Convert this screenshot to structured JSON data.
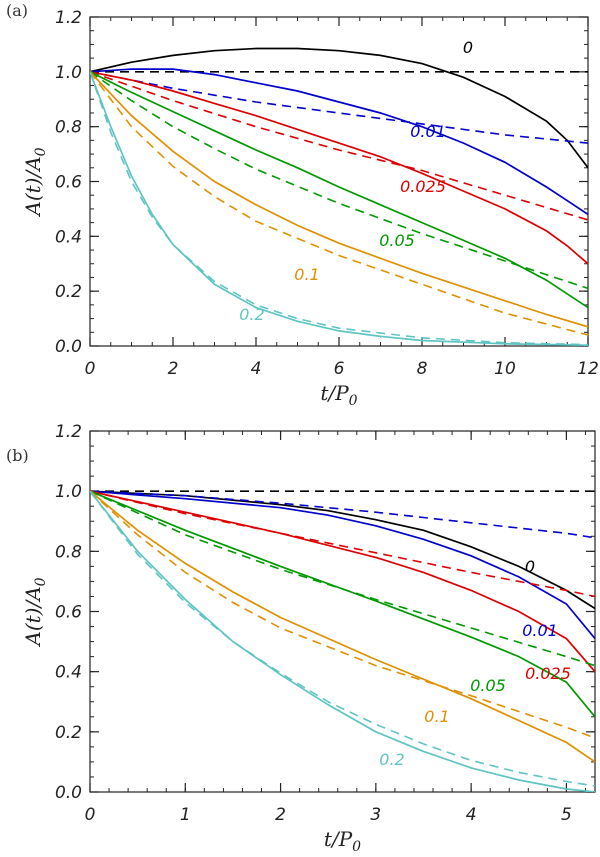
{
  "chart_data": [
    {
      "type": "line",
      "panel_label": "(a)",
      "xlabel_main": "t/P",
      "xlabel_sub": "0",
      "ylabel_main": "A(t)/A",
      "ylabel_sub": "0",
      "xlim": [
        0,
        12
      ],
      "ylim": [
        0,
        1.2
      ],
      "x_ticks": [
        0,
        2,
        4,
        6,
        8,
        10,
        12
      ],
      "y_ticks": [
        "0.0",
        "0.2",
        "0.4",
        "0.6",
        "0.8",
        "1.0",
        "1.2"
      ],
      "grid": false,
      "series": [
        {
          "label": "0",
          "color": "#000000",
          "points": [
            [
              0,
              1.0
            ],
            [
              1,
              1.035
            ],
            [
              2,
              1.06
            ],
            [
              3,
              1.077
            ],
            [
              4,
              1.085
            ],
            [
              5,
              1.085
            ],
            [
              6,
              1.077
            ],
            [
              7,
              1.06
            ],
            [
              8,
              1.03
            ],
            [
              9,
              0.98
            ],
            [
              10,
              0.91
            ],
            [
              11,
              0.82
            ],
            [
              11.5,
              0.75
            ],
            [
              12,
              0.65
            ]
          ],
          "dashed_points": [
            [
              0,
              1.0
            ],
            [
              12,
              1.0
            ]
          ]
        },
        {
          "label": "0.01",
          "color": "#0000cc",
          "points": [
            [
              0,
              1.0
            ],
            [
              1,
              1.01
            ],
            [
              2,
              1.01
            ],
            [
              3,
              0.99
            ],
            [
              4,
              0.96
            ],
            [
              5,
              0.93
            ],
            [
              6,
              0.89
            ],
            [
              7,
              0.85
            ],
            [
              8,
              0.8
            ],
            [
              9,
              0.74
            ],
            [
              10,
              0.67
            ],
            [
              11,
              0.58
            ],
            [
              11.5,
              0.53
            ],
            [
              12,
              0.48
            ]
          ],
          "dashed_points": [
            [
              0,
              1.0
            ],
            [
              2,
              0.94
            ],
            [
              4,
              0.89
            ],
            [
              6,
              0.85
            ],
            [
              8,
              0.81
            ],
            [
              10,
              0.77
            ],
            [
              12,
              0.74
            ]
          ]
        },
        {
          "label": "0.025",
          "color": "#dd0000",
          "points": [
            [
              0,
              1.0
            ],
            [
              1,
              0.97
            ],
            [
              2,
              0.93
            ],
            [
              3,
              0.885
            ],
            [
              4,
              0.84
            ],
            [
              5,
              0.79
            ],
            [
              6,
              0.74
            ],
            [
              7,
              0.69
            ],
            [
              8,
              0.63
            ],
            [
              9,
              0.565
            ],
            [
              10,
              0.5
            ],
            [
              11,
              0.42
            ],
            [
              11.5,
              0.365
            ],
            [
              12,
              0.3
            ]
          ],
          "dashed_points": [
            [
              0,
              1.0
            ],
            [
              2,
              0.895
            ],
            [
              4,
              0.8
            ],
            [
              6,
              0.715
            ],
            [
              8,
              0.64
            ],
            [
              10,
              0.55
            ],
            [
              12,
              0.46
            ]
          ]
        },
        {
          "label": "0.05",
          "color": "#009900",
          "points": [
            [
              0,
              1.0
            ],
            [
              1,
              0.925
            ],
            [
              2,
              0.855
            ],
            [
              3,
              0.785
            ],
            [
              4,
              0.715
            ],
            [
              5,
              0.65
            ],
            [
              6,
              0.58
            ],
            [
              7,
              0.515
            ],
            [
              8,
              0.45
            ],
            [
              9,
              0.385
            ],
            [
              10,
              0.32
            ],
            [
              11,
              0.24
            ],
            [
              12,
              0.14
            ]
          ],
          "dashed_points": [
            [
              0,
              1.0
            ],
            [
              1,
              0.895
            ],
            [
              2,
              0.8
            ],
            [
              3,
              0.72
            ],
            [
              4,
              0.645
            ],
            [
              6,
              0.52
            ],
            [
              8,
              0.41
            ],
            [
              10,
              0.31
            ],
            [
              12,
              0.21
            ]
          ]
        },
        {
          "label": "0.1",
          "color": "#e09000",
          "points": [
            [
              0,
              1.0
            ],
            [
              1,
              0.84
            ],
            [
              2,
              0.71
            ],
            [
              3,
              0.6
            ],
            [
              4,
              0.515
            ],
            [
              5,
              0.44
            ],
            [
              6,
              0.375
            ],
            [
              7,
              0.32
            ],
            [
              8,
              0.265
            ],
            [
              9,
              0.215
            ],
            [
              10,
              0.165
            ],
            [
              11,
              0.115
            ],
            [
              12,
              0.07
            ]
          ],
          "dashed_points": [
            [
              0,
              1.0
            ],
            [
              1,
              0.8
            ],
            [
              2,
              0.655
            ],
            [
              3,
              0.545
            ],
            [
              4,
              0.455
            ],
            [
              6,
              0.33
            ],
            [
              8,
              0.225
            ],
            [
              10,
              0.12
            ],
            [
              12,
              0.04
            ]
          ]
        },
        {
          "label": "0.2",
          "color": "#5fc4c4",
          "points": [
            [
              0,
              1.0
            ],
            [
              0.5,
              0.8
            ],
            [
              1,
              0.62
            ],
            [
              1.5,
              0.48
            ],
            [
              2,
              0.37
            ],
            [
              3,
              0.225
            ],
            [
              4,
              0.14
            ],
            [
              5,
              0.09
            ],
            [
              6,
              0.055
            ],
            [
              7,
              0.035
            ],
            [
              8,
              0.02
            ],
            [
              10,
              0.008
            ],
            [
              12,
              0.003
            ]
          ],
          "dashed_points": [
            [
              0,
              1.0
            ],
            [
              0.5,
              0.78
            ],
            [
              1,
              0.6
            ],
            [
              1.5,
              0.47
            ],
            [
              2,
              0.37
            ],
            [
              3,
              0.235
            ],
            [
              4,
              0.15
            ],
            [
              5,
              0.1
            ],
            [
              6,
              0.065
            ],
            [
              8,
              0.03
            ],
            [
              10,
              0.012
            ],
            [
              12,
              0.005
            ]
          ]
        }
      ]
    },
    {
      "type": "line",
      "panel_label": "(b)",
      "xlabel_main": "t/P",
      "xlabel_sub": "0",
      "ylabel_main": "A(t)/A",
      "ylabel_sub": "0",
      "xlim": [
        0,
        5.3
      ],
      "ylim": [
        0,
        1.2
      ],
      "x_ticks": [
        0,
        1,
        2,
        3,
        4,
        5
      ],
      "y_ticks": [
        "0.0",
        "0.2",
        "0.4",
        "0.6",
        "0.8",
        "1.0",
        "1.2"
      ],
      "grid": false,
      "series": [
        {
          "label": "0",
          "color": "#000000",
          "points": [
            [
              0,
              1.0
            ],
            [
              1,
              0.985
            ],
            [
              2,
              0.955
            ],
            [
              2.5,
              0.935
            ],
            [
              3,
              0.905
            ],
            [
              3.5,
              0.87
            ],
            [
              4,
              0.815
            ],
            [
              4.5,
              0.75
            ],
            [
              5,
              0.67
            ],
            [
              5.3,
              0.61
            ]
          ],
          "dashed_points": [
            [
              0,
              1.0
            ],
            [
              5.3,
              1.0
            ]
          ]
        },
        {
          "label": "0.01",
          "color": "#0000cc",
          "points": [
            [
              0,
              1.0
            ],
            [
              1,
              0.975
            ],
            [
              2,
              0.945
            ],
            [
              2.5,
              0.92
            ],
            [
              3,
              0.885
            ],
            [
              3.5,
              0.84
            ],
            [
              4,
              0.785
            ],
            [
              4.5,
              0.715
            ],
            [
              5,
              0.625
            ],
            [
              5.3,
              0.51
            ]
          ],
          "dashed_points": [
            [
              0,
              1.0
            ],
            [
              1,
              0.985
            ],
            [
              2,
              0.96
            ],
            [
              3,
              0.93
            ],
            [
              4,
              0.895
            ],
            [
              5,
              0.86
            ],
            [
              5.3,
              0.845
            ]
          ]
        },
        {
          "label": "0.025",
          "color": "#dd0000",
          "points": [
            [
              0,
              1.0
            ],
            [
              1,
              0.93
            ],
            [
              2,
              0.86
            ],
            [
              3,
              0.78
            ],
            [
              3.5,
              0.73
            ],
            [
              4,
              0.67
            ],
            [
              4.5,
              0.6
            ],
            [
              5,
              0.51
            ],
            [
              5.3,
              0.4
            ]
          ],
          "dashed_points": [
            [
              0,
              1.0
            ],
            [
              1,
              0.925
            ],
            [
              2,
              0.86
            ],
            [
              3,
              0.795
            ],
            [
              4,
              0.73
            ],
            [
              5,
              0.67
            ],
            [
              5.3,
              0.65
            ]
          ]
        },
        {
          "label": "0.05",
          "color": "#009900",
          "points": [
            [
              0,
              1.0
            ],
            [
              1,
              0.87
            ],
            [
              2,
              0.75
            ],
            [
              3,
              0.635
            ],
            [
              4,
              0.515
            ],
            [
              4.5,
              0.45
            ],
            [
              5,
              0.365
            ],
            [
              5.3,
              0.25
            ]
          ],
          "dashed_points": [
            [
              0,
              1.0
            ],
            [
              1,
              0.855
            ],
            [
              2,
              0.74
            ],
            [
              3,
              0.64
            ],
            [
              4,
              0.545
            ],
            [
              5,
              0.45
            ],
            [
              5.3,
              0.42
            ]
          ]
        },
        {
          "label": "0.1",
          "color": "#e09000",
          "points": [
            [
              0,
              1.0
            ],
            [
              0.5,
              0.87
            ],
            [
              1,
              0.76
            ],
            [
              1.5,
              0.665
            ],
            [
              2,
              0.58
            ],
            [
              3,
              0.44
            ],
            [
              4,
              0.31
            ],
            [
              5,
              0.165
            ],
            [
              5.3,
              0.1
            ]
          ],
          "dashed_points": [
            [
              0,
              1.0
            ],
            [
              0.5,
              0.855
            ],
            [
              1,
              0.73
            ],
            [
              1.5,
              0.63
            ],
            [
              2,
              0.545
            ],
            [
              3,
              0.42
            ],
            [
              4,
              0.32
            ],
            [
              5,
              0.215
            ],
            [
              5.3,
              0.18
            ]
          ]
        },
        {
          "label": "0.2",
          "color": "#5fc4c4",
          "points": [
            [
              0,
              1.0
            ],
            [
              0.5,
              0.8
            ],
            [
              1,
              0.64
            ],
            [
              1.5,
              0.5
            ],
            [
              2,
              0.39
            ],
            [
              2.5,
              0.29
            ],
            [
              3,
              0.2
            ],
            [
              3.5,
              0.135
            ],
            [
              4,
              0.08
            ],
            [
              4.5,
              0.04
            ],
            [
              5,
              0.01
            ],
            [
              5.3,
              0.0
            ]
          ],
          "dashed_points": [
            [
              0,
              1.0
            ],
            [
              0.5,
              0.79
            ],
            [
              1,
              0.63
            ],
            [
              1.5,
              0.5
            ],
            [
              2,
              0.395
            ],
            [
              2.5,
              0.3
            ],
            [
              3,
              0.225
            ],
            [
              3.5,
              0.16
            ],
            [
              4,
              0.105
            ],
            [
              4.5,
              0.065
            ],
            [
              5,
              0.035
            ],
            [
              5.3,
              0.02
            ]
          ]
        }
      ]
    }
  ]
}
